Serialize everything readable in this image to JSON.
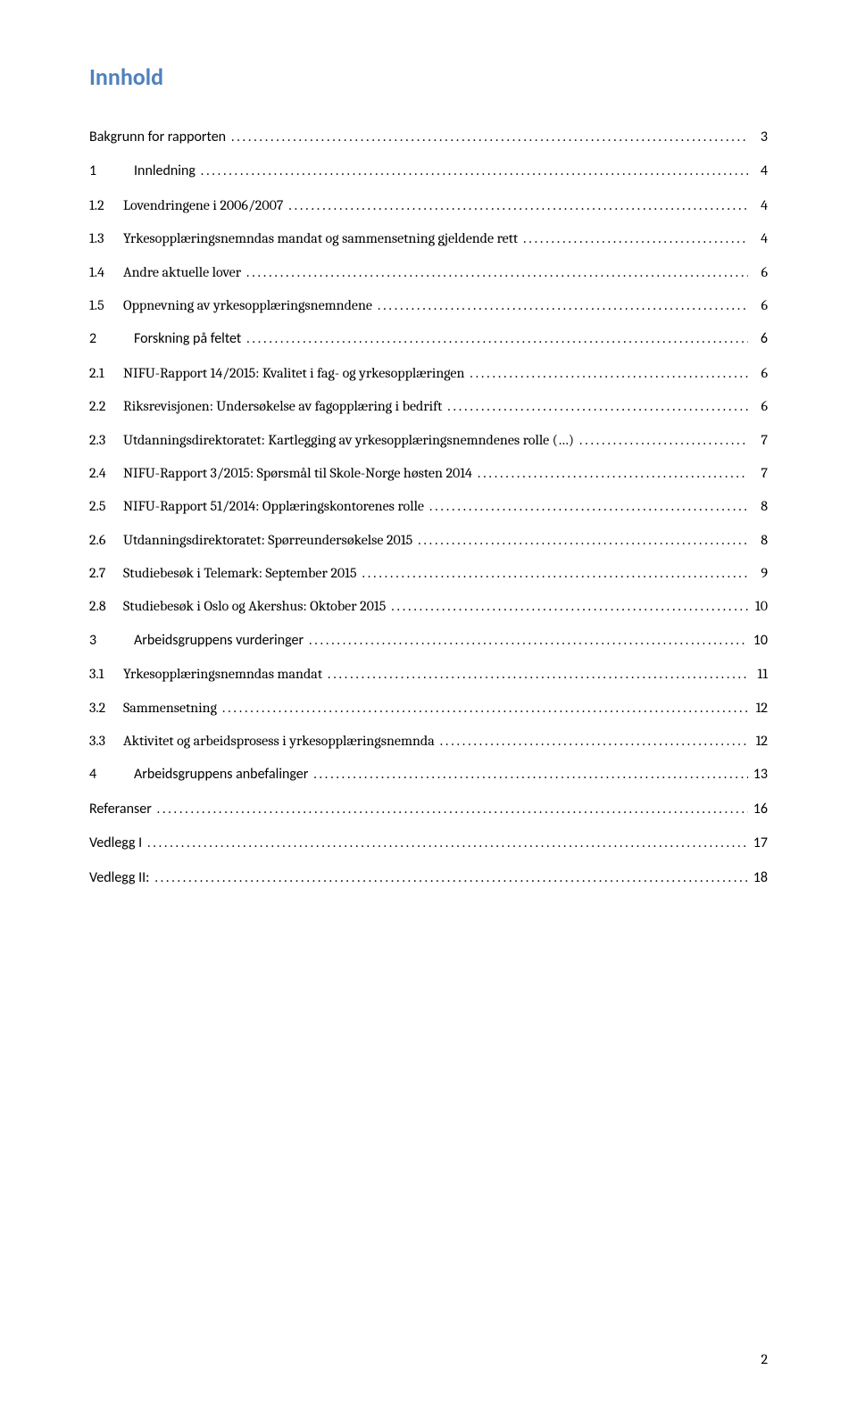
{
  "title": "Innhold",
  "title_color": "#4f81bd",
  "text_color": "#000000",
  "background_color": "#ffffff",
  "page_number": "2",
  "toc": [
    {
      "level": 1,
      "num": "",
      "label": "Bakgrunn for rapporten",
      "page": "3"
    },
    {
      "level": 1,
      "num": "1",
      "label": "Innledning",
      "page": "4"
    },
    {
      "level": 2,
      "num": "1.2",
      "label": "Lovendringene i 2006/2007",
      "page": "4"
    },
    {
      "level": 2,
      "num": "1.3",
      "label": "Yrkesopplæringsnemndas mandat og sammensetning gjeldende rett",
      "page": "4"
    },
    {
      "level": 2,
      "num": "1.4",
      "label": "Andre aktuelle lover",
      "page": "6"
    },
    {
      "level": 2,
      "num": "1.5",
      "label": "Oppnevning av yrkesopplæringsnemndene",
      "page": "6"
    },
    {
      "level": 1,
      "num": "2",
      "label": "Forskning på feltet",
      "page": "6"
    },
    {
      "level": 2,
      "num": "2.1",
      "label": "NIFU-Rapport 14/2015: Kvalitet i fag- og yrkesopplæringen",
      "page": "6"
    },
    {
      "level": 2,
      "num": "2.2",
      "label": "Riksrevisjonen: Undersøkelse av fagopplæring i bedrift",
      "page": "6"
    },
    {
      "level": 2,
      "num": "2.3",
      "label": "Utdanningsdirektoratet: Kartlegging av yrkesopplæringsnemndenes rolle (…)",
      "page": "7"
    },
    {
      "level": 2,
      "num": "2.4",
      "label": "NIFU-Rapport 3/2015: Spørsmål til Skole-Norge høsten 2014",
      "page": "7"
    },
    {
      "level": 2,
      "num": "2.5",
      "label": "NIFU-Rapport 51/2014: Opplæringskontorenes rolle",
      "page": "8"
    },
    {
      "level": 2,
      "num": "2.6",
      "label": "Utdanningsdirektoratet: Spørreundersøkelse 2015",
      "page": "8"
    },
    {
      "level": 2,
      "num": "2.7",
      "label": "Studiebesøk i Telemark: September 2015",
      "page": "9"
    },
    {
      "level": 2,
      "num": "2.8",
      "label": "Studiebesøk i Oslo og Akershus: Oktober 2015",
      "page": "10"
    },
    {
      "level": 1,
      "num": "3",
      "label": "Arbeidsgruppens vurderinger",
      "page": "10"
    },
    {
      "level": 2,
      "num": "3.1",
      "label": "Yrkesopplæringsnemndas mandat",
      "page": "11"
    },
    {
      "level": 2,
      "num": "3.2",
      "label": "Sammensetning",
      "page": "12"
    },
    {
      "level": 2,
      "num": "3.3",
      "label": "Aktivitet og arbeidsprosess i yrkesopplæringsnemnda",
      "page": "12"
    },
    {
      "level": 1,
      "num": "4",
      "label": "Arbeidsgruppens anbefalinger",
      "page": "13"
    },
    {
      "level": 1,
      "num": "",
      "label": "Referanser",
      "page": "16"
    },
    {
      "level": 1,
      "num": "",
      "label": "Vedlegg I",
      "page": "17"
    },
    {
      "level": 1,
      "num": "",
      "label": "Vedlegg II:",
      "page": "18"
    }
  ]
}
